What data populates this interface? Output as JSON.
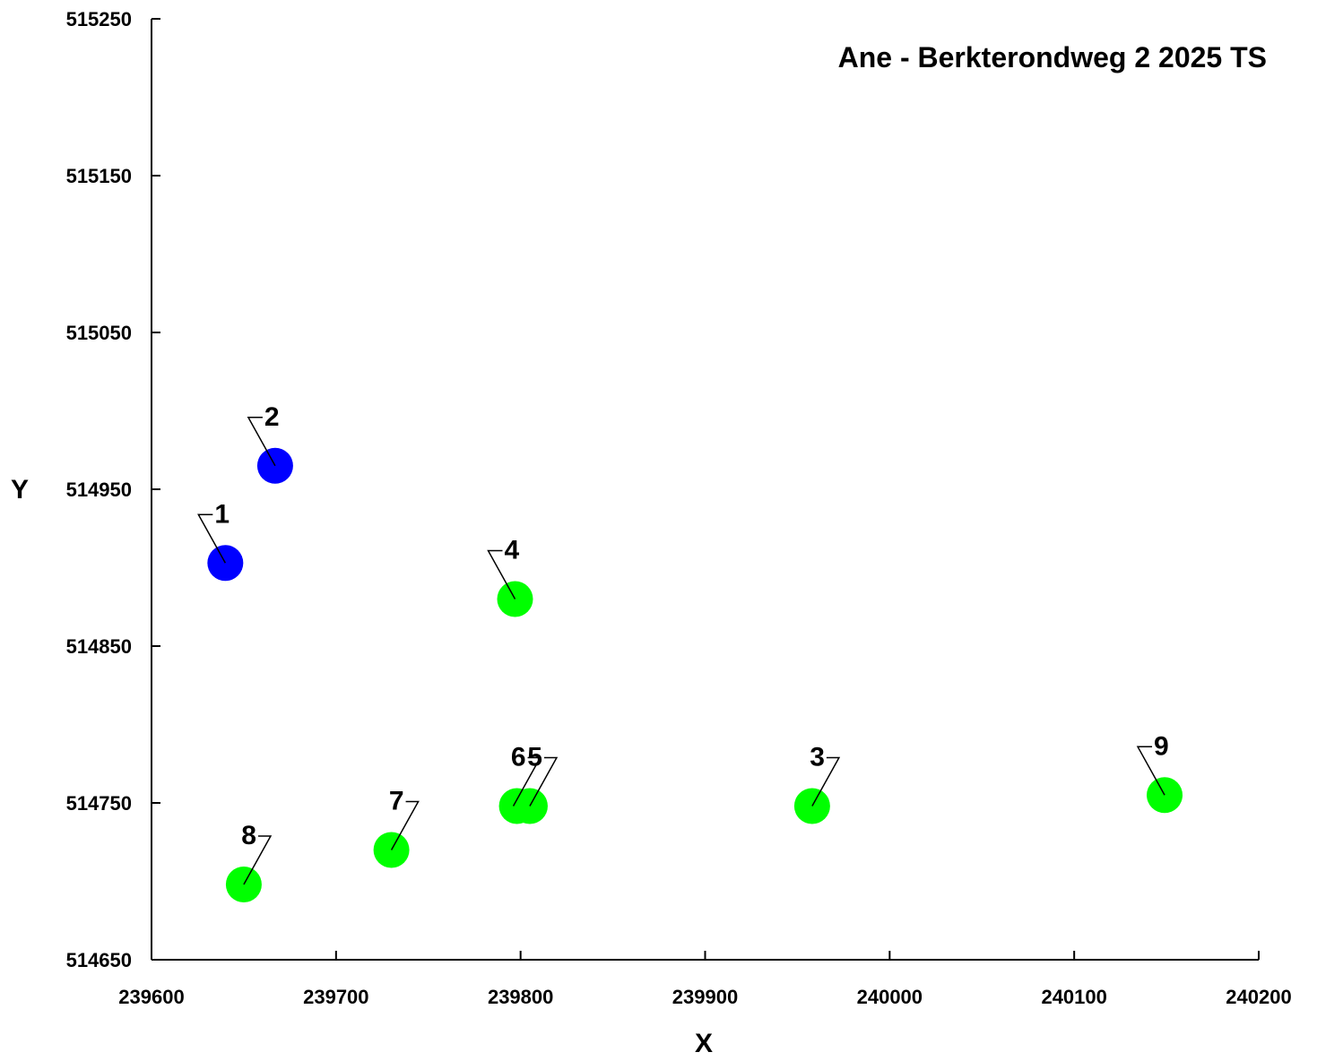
{
  "chart_data": {
    "type": "scatter",
    "title": "Ane - Berkterondweg 2 2025 TS",
    "xlabel": "X",
    "ylabel": "Y",
    "xlim": [
      239600,
      240200
    ],
    "ylim": [
      514650,
      515250
    ],
    "xticks": [
      "239600",
      "239700",
      "239800",
      "239900",
      "240000",
      "240100",
      "240200"
    ],
    "yticks": [
      "514650",
      "514750",
      "514850",
      "514950",
      "515050",
      "515150",
      "515250"
    ],
    "grid": false,
    "legend": "none",
    "colors": {
      "blue": "#0000ff",
      "green": "#00ff00",
      "axis": "#000000"
    },
    "points": [
      {
        "label": "1",
        "x": 239640,
        "y": 514903,
        "color": "blue"
      },
      {
        "label": "2",
        "x": 239667,
        "y": 514965,
        "color": "blue"
      },
      {
        "label": "3",
        "x": 239958,
        "y": 514748,
        "color": "green"
      },
      {
        "label": "4",
        "x": 239797,
        "y": 514880,
        "color": "green"
      },
      {
        "label": "5",
        "x": 239805,
        "y": 514748,
        "color": "green"
      },
      {
        "label": "6",
        "x": 239798,
        "y": 514748,
        "color": "green"
      },
      {
        "label": "7",
        "x": 239730,
        "y": 514720,
        "color": "green"
      },
      {
        "label": "8",
        "x": 239650,
        "y": 514698,
        "color": "green"
      },
      {
        "label": "9",
        "x": 240149,
        "y": 514755,
        "color": "green"
      }
    ]
  }
}
